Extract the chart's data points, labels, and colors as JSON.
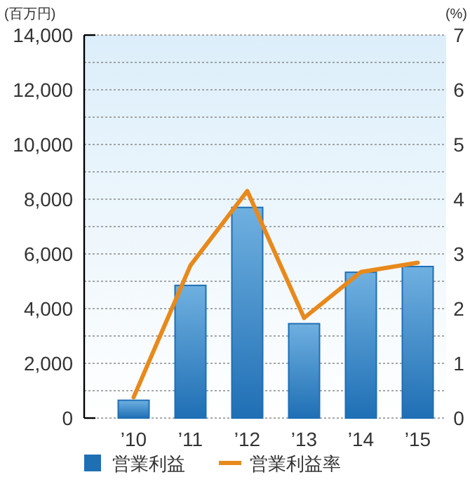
{
  "chart_data": {
    "type": "bar",
    "ylabel": "(百万円)",
    "y2label": "(%)",
    "categories": [
      "’10",
      "’11",
      "’12",
      "’13",
      "’14",
      "’15"
    ],
    "series": [
      {
        "name": "営業利益",
        "color": "#1f6fb5",
        "values": [
          650,
          4850,
          7700,
          3450,
          5330,
          5540
        ]
      },
      {
        "name": "営業利益率",
        "type": "line",
        "color": "#e8891c",
        "axis": "y2",
        "values": [
          0.38,
          2.79,
          4.15,
          1.83,
          2.67,
          2.84
        ]
      }
    ],
    "ylim": [
      0,
      14000
    ],
    "yticks": [
      0,
      {
        "value": 1000,
        "label": null
      },
      {
        "value": 2000,
        "label": "2,000"
      },
      {
        "value": 3000,
        "label": null
      },
      {
        "value": 4000,
        "label": "4,000"
      },
      {
        "value": 5000,
        "label": null
      },
      {
        "value": 6000,
        "label": "6,000"
      },
      {
        "value": 7000,
        "label": null
      },
      {
        "value": 8000,
        "label": "8,000"
      },
      {
        "value": 9000,
        "label": null
      },
      {
        "value": 10000,
        "label": "10,000"
      },
      {
        "value": 11000,
        "label": null
      },
      {
        "value": 12000,
        "label": "12,000"
      },
      {
        "value": 13000,
        "label": null
      },
      {
        "value": 14000,
        "label": "14,000"
      }
    ],
    "y2lim": [
      0,
      7
    ],
    "y2ticks": [
      0,
      1,
      2,
      3,
      4,
      5,
      6,
      7
    ],
    "grid": "y",
    "legend": "bottom"
  }
}
